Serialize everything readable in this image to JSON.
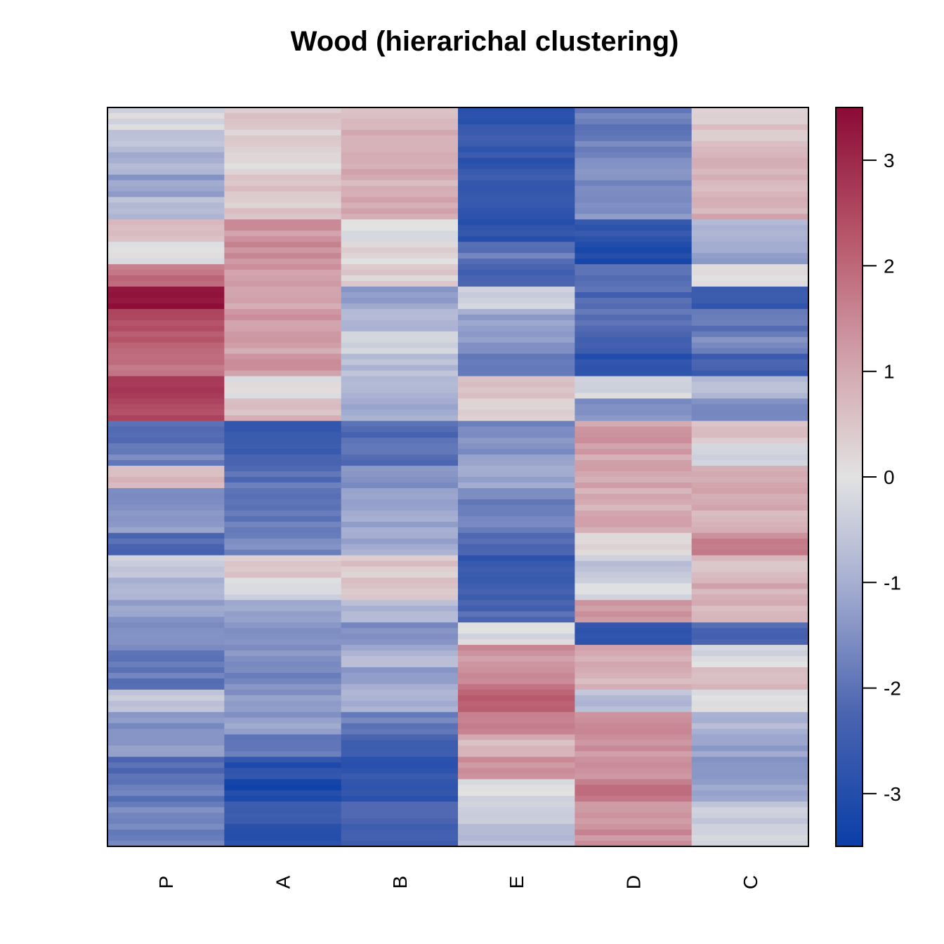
{
  "chart_data": {
    "type": "heatmap",
    "title": "Wood (hierarichal clustering)",
    "columns": [
      "P",
      "A",
      "B",
      "E",
      "D",
      "C"
    ],
    "legend": {
      "ticks": [
        "3",
        "2",
        "1",
        "0",
        "-1",
        "-2",
        "-3"
      ],
      "tick_values": [
        3,
        2,
        1,
        0,
        -1,
        -2,
        -3
      ],
      "range": [
        -3.5,
        3.5
      ],
      "colors": {
        "low": "#0a3fa8",
        "mid": "#e2e2e2",
        "high": "#8b0a36"
      }
    },
    "row_blocks": [
      [
        -0.1,
        0.5,
        0.8,
        -2.8,
        -1.8,
        0.5
      ],
      [
        -0.6,
        0.3,
        0.8,
        -2.6,
        -1.8,
        0.5
      ],
      [
        -1.0,
        0.2,
        0.9,
        -2.7,
        -1.5,
        0.7
      ],
      [
        -1.3,
        0.5,
        0.8,
        -2.5,
        -1.5,
        0.7
      ],
      [
        -0.8,
        0.4,
        0.9,
        -2.6,
        -1.5,
        0.9
      ],
      [
        0.6,
        1.3,
        0.0,
        -2.8,
        -2.8,
        -1.0
      ],
      [
        0.1,
        1.4,
        0.2,
        -1.9,
        -3.2,
        -1.2
      ],
      [
        1.8,
        1.2,
        0.4,
        -2.4,
        -2.0,
        -0.1
      ],
      [
        3.4,
        1.1,
        -1.2,
        -0.3,
        -2.2,
        -2.6
      ],
      [
        2.3,
        1.2,
        -0.9,
        -1.2,
        -2.0,
        -2.0
      ],
      [
        2.1,
        1.1,
        -0.2,
        -1.3,
        -2.4,
        -1.6
      ],
      [
        1.8,
        1.3,
        -0.8,
        -1.8,
        -2.9,
        -2.4
      ],
      [
        2.9,
        -0.1,
        -0.9,
        0.6,
        -0.2,
        -0.8
      ],
      [
        2.4,
        0.7,
        -1.0,
        0.2,
        -1.4,
        -1.6
      ],
      [
        -2.0,
        -2.6,
        -2.2,
        -1.6,
        1.2,
        0.6
      ],
      [
        -1.7,
        -2.5,
        -2.1,
        -1.4,
        1.1,
        -0.1
      ],
      [
        0.8,
        -2.0,
        -1.5,
        -1.2,
        1.0,
        0.8
      ],
      [
        -1.5,
        -2.0,
        -1.3,
        -1.7,
        0.9,
        0.9
      ],
      [
        -1.2,
        -1.8,
        -1.2,
        -1.8,
        1.0,
        0.9
      ],
      [
        -2.1,
        -1.7,
        -1.1,
        -2.2,
        0.3,
        1.5
      ],
      [
        -0.4,
        0.5,
        0.5,
        -2.6,
        -0.5,
        0.6
      ],
      [
        -0.8,
        -0.2,
        0.4,
        -2.5,
        -0.2,
        0.9
      ],
      [
        -1.3,
        -1.1,
        -0.9,
        -2.2,
        1.2,
        0.8
      ],
      [
        -1.6,
        -1.6,
        -1.5,
        -0.1,
        -2.6,
        -2.2
      ],
      [
        -1.8,
        -1.5,
        -0.9,
        1.3,
        1.0,
        -0.2
      ],
      [
        -1.9,
        -1.6,
        -1.2,
        1.6,
        0.8,
        0.6
      ],
      [
        -0.6,
        -1.4,
        -1.1,
        2.1,
        -0.7,
        0.0
      ],
      [
        -1.5,
        -1.3,
        -1.8,
        1.7,
        1.3,
        -0.8
      ],
      [
        -1.2,
        -2.0,
        -2.4,
        0.8,
        1.3,
        -1.2
      ],
      [
        -2.2,
        -2.9,
        -2.7,
        1.4,
        1.4,
        -1.3
      ],
      [
        -1.9,
        -3.2,
        -2.8,
        -0.1,
        1.7,
        -1.1
      ],
      [
        -1.6,
        -2.6,
        -2.2,
        -0.5,
        1.4,
        -0.5
      ],
      [
        -1.8,
        -2.8,
        -2.3,
        -0.9,
        1.4,
        -0.2
      ]
    ],
    "grid": false,
    "legend_placement": "right"
  }
}
